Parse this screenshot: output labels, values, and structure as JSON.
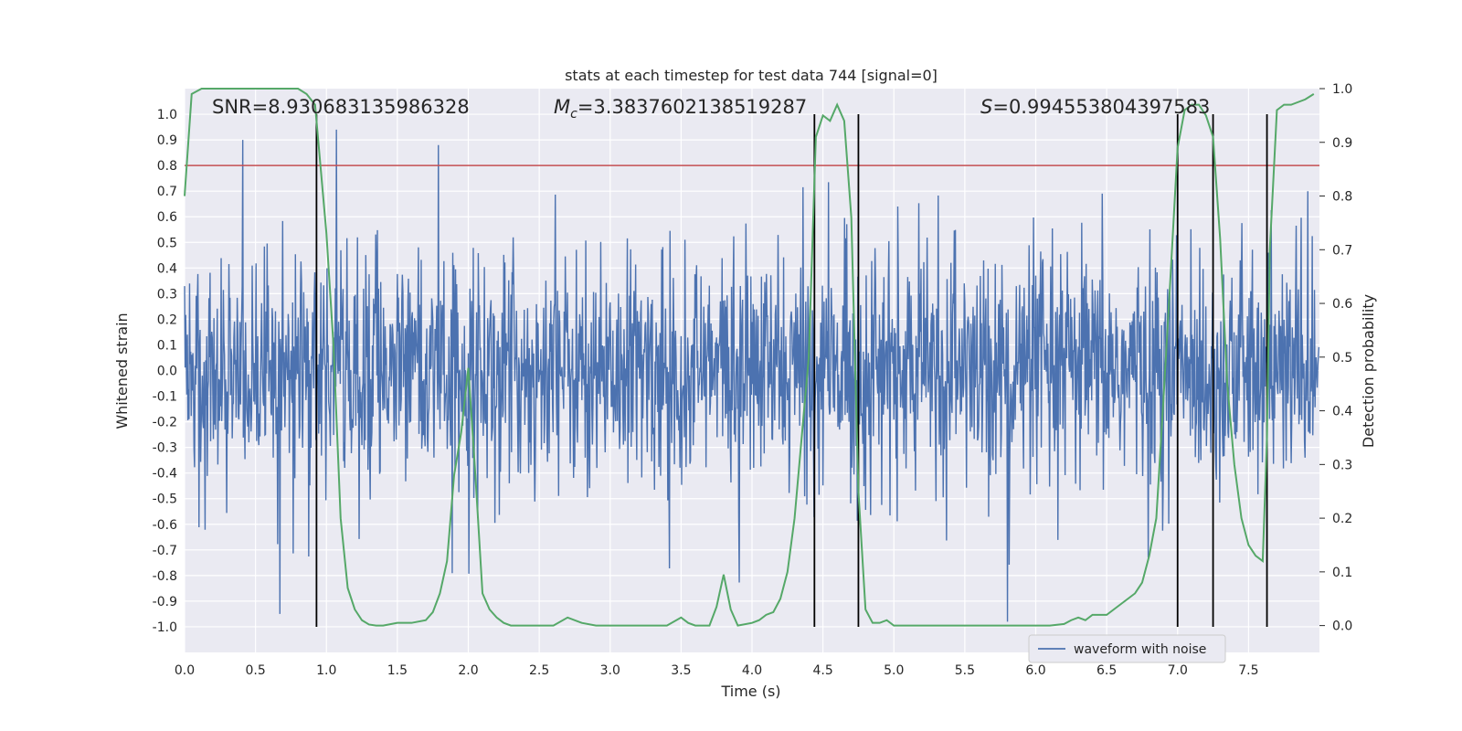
{
  "chart_data": {
    "type": "line",
    "title": "stats at each timestep for test data 744 [signal=0]",
    "xlabel": "Time (s)",
    "ylabel": "Whitened strain",
    "y2label": "Detection probability",
    "xlim": [
      0.0,
      8.0
    ],
    "ylim": [
      -1.1,
      1.1
    ],
    "y2lim": [
      -0.05,
      1.0
    ],
    "xticks": [
      "0.0",
      "0.5",
      "1.0",
      "1.5",
      "2.0",
      "2.5",
      "3.0",
      "3.5",
      "4.0",
      "4.5",
      "5.0",
      "5.5",
      "6.0",
      "6.5",
      "7.0",
      "7.5"
    ],
    "yticks": [
      "1.0",
      "0.9",
      "0.8",
      "0.7",
      "0.6",
      "0.5",
      "0.4",
      "0.3",
      "0.2",
      "0.1",
      "0.0",
      "-0.1",
      "-0.2",
      "-0.3",
      "-0.4",
      "-0.5",
      "-0.6",
      "-0.7",
      "-0.8",
      "-0.9",
      "-1.0"
    ],
    "y2ticks": [
      "1.0",
      "0.9",
      "0.8",
      "0.7",
      "0.6",
      "0.5",
      "0.4",
      "0.3",
      "0.2",
      "0.1",
      "0.0"
    ],
    "annotations": {
      "snr": "SNR=8.930683135986328",
      "mc_symbol": "M",
      "mc_sub": "c",
      "mc_value": "=3.3837602138519287",
      "s_symbol": "S",
      "s_value": "=0.994553804397583"
    },
    "legend": {
      "label": "waveform with noise",
      "placement": "lower-right"
    },
    "threshold": 0.8,
    "vlines": [
      0.93,
      4.44,
      4.75,
      7.0,
      7.25,
      7.63
    ],
    "waveform": {
      "name": "waveform with noise",
      "sample_rate": 256,
      "typical_amplitude": 0.4,
      "peak_spikes": [
        [
          0.41,
          0.9
        ],
        [
          1.07,
          0.94
        ],
        [
          5.8,
          -0.98
        ],
        [
          0.67,
          -0.95
        ]
      ]
    },
    "detection_probability": {
      "name": "detection probability",
      "x": [
        0.0,
        0.05,
        0.12,
        0.2,
        0.3,
        0.5,
        0.7,
        0.8,
        0.86,
        0.92,
        1.0,
        1.05,
        1.1,
        1.15,
        1.2,
        1.25,
        1.3,
        1.35,
        1.4,
        1.5,
        1.6,
        1.7,
        1.75,
        1.8,
        1.85,
        1.9,
        1.95,
        2.0,
        2.05,
        2.1,
        2.15,
        2.2,
        2.25,
        2.3,
        2.4,
        2.5,
        2.6,
        2.7,
        2.8,
        2.9,
        3.0,
        3.1,
        3.2,
        3.3,
        3.4,
        3.5,
        3.55,
        3.6,
        3.7,
        3.75,
        3.8,
        3.85,
        3.9,
        4.0,
        4.05,
        4.1,
        4.15,
        4.2,
        4.25,
        4.3,
        4.4,
        4.45,
        4.5,
        4.55,
        4.6,
        4.65,
        4.7,
        4.75,
        4.8,
        4.85,
        4.9,
        4.95,
        5.0,
        5.05,
        5.1,
        5.2,
        5.5,
        5.8,
        6.0,
        6.1,
        6.2,
        6.25,
        6.3,
        6.35,
        6.4,
        6.5,
        6.55,
        6.6,
        6.65,
        6.7,
        6.75,
        6.8,
        6.85,
        6.9,
        6.95,
        7.0,
        7.05,
        7.1,
        7.15,
        7.2,
        7.25,
        7.3,
        7.35,
        7.4,
        7.45,
        7.5,
        7.55,
        7.6,
        7.63,
        7.65,
        7.7,
        7.75,
        7.8,
        7.9,
        7.96
      ],
      "y": [
        0.8,
        0.99,
        1.0,
        1.0,
        1.0,
        1.0,
        1.0,
        1.0,
        0.99,
        0.97,
        0.73,
        0.52,
        0.2,
        0.07,
        0.03,
        0.01,
        0.002,
        0.0,
        0.0,
        0.005,
        0.005,
        0.01,
        0.025,
        0.06,
        0.12,
        0.28,
        0.36,
        0.48,
        0.28,
        0.06,
        0.03,
        0.015,
        0.005,
        0.0,
        0.0,
        0.0,
        0.0,
        0.015,
        0.005,
        0.0,
        0.0,
        0.0,
        0.0,
        0.0,
        0.0,
        0.015,
        0.005,
        0.0,
        0.0,
        0.035,
        0.095,
        0.03,
        0.0,
        0.005,
        0.01,
        0.02,
        0.025,
        0.05,
        0.1,
        0.2,
        0.5,
        0.91,
        0.95,
        0.94,
        0.97,
        0.94,
        0.76,
        0.25,
        0.03,
        0.005,
        0.005,
        0.01,
        0.0,
        0.0,
        0.0,
        0.0,
        0.0,
        0.0,
        0.0,
        0.0,
        0.003,
        0.01,
        0.015,
        0.01,
        0.02,
        0.02,
        0.03,
        0.04,
        0.05,
        0.06,
        0.08,
        0.13,
        0.2,
        0.42,
        0.65,
        0.89,
        0.96,
        0.97,
        0.97,
        0.95,
        0.91,
        0.72,
        0.45,
        0.3,
        0.2,
        0.15,
        0.13,
        0.12,
        0.35,
        0.7,
        0.96,
        0.97,
        0.97,
        0.98,
        0.99
      ]
    }
  }
}
